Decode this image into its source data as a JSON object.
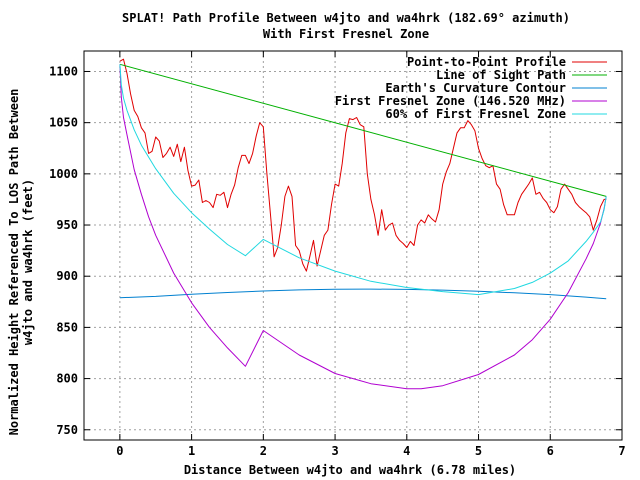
{
  "chart_data": {
    "type": "line",
    "title": "SPLAT! Path Profile Between w4jto and wa4hrk (182.69° azimuth)",
    "subtitle": "With First Fresnel Zone",
    "xlabel": "Distance Between w4jto and wa4hrk (6.78 miles)",
    "ylabel_line1": "Normalized Height Referenced To LOS Path Between",
    "ylabel_line2": "w4jto and wa4hrk (feet)",
    "xlim": [
      -0.5,
      7
    ],
    "ylim": [
      740,
      1120
    ],
    "xticks": [
      0,
      1,
      2,
      3,
      4,
      5,
      6,
      7
    ],
    "yticks": [
      750,
      800,
      850,
      900,
      950,
      1000,
      1050,
      1100
    ],
    "grid": true,
    "legend_position": "top-right",
    "colors": {
      "profile": "#e00000",
      "los": "#00b000",
      "earth": "#0080d0",
      "fresnel": "#b000d0",
      "fresnel60": "#20d8e0",
      "grid": "#a0a0a0"
    },
    "series": [
      {
        "name": "Point-to-Point Profile",
        "key": "profile",
        "x": [
          0,
          0.05,
          0.1,
          0.15,
          0.2,
          0.25,
          0.3,
          0.35,
          0.4,
          0.45,
          0.5,
          0.55,
          0.6,
          0.65,
          0.7,
          0.75,
          0.8,
          0.85,
          0.9,
          0.95,
          1.0,
          1.05,
          1.1,
          1.15,
          1.2,
          1.25,
          1.3,
          1.35,
          1.4,
          1.45,
          1.5,
          1.55,
          1.6,
          1.65,
          1.7,
          1.75,
          1.8,
          1.85,
          1.9,
          1.95,
          2.0,
          2.05,
          2.1,
          2.15,
          2.2,
          2.25,
          2.3,
          2.35,
          2.4,
          2.45,
          2.5,
          2.55,
          2.6,
          2.65,
          2.7,
          2.75,
          2.8,
          2.85,
          2.9,
          2.95,
          3.0,
          3.05,
          3.1,
          3.15,
          3.2,
          3.25,
          3.3,
          3.35,
          3.4,
          3.45,
          3.5,
          3.55,
          3.6,
          3.65,
          3.7,
          3.75,
          3.8,
          3.85,
          3.9,
          3.95,
          4.0,
          4.05,
          4.1,
          4.15,
          4.2,
          4.25,
          4.3,
          4.35,
          4.4,
          4.45,
          4.5,
          4.55,
          4.6,
          4.65,
          4.7,
          4.75,
          4.8,
          4.85,
          4.9,
          4.95,
          5.0,
          5.05,
          5.1,
          5.15,
          5.2,
          5.25,
          5.3,
          5.35,
          5.4,
          5.45,
          5.5,
          5.55,
          5.6,
          5.65,
          5.7,
          5.75,
          5.8,
          5.85,
          5.9,
          5.95,
          6.0,
          6.05,
          6.1,
          6.15,
          6.2,
          6.25,
          6.3,
          6.35,
          6.4,
          6.45,
          6.5,
          6.55,
          6.6,
          6.65,
          6.7,
          6.75,
          6.78
        ],
        "y": [
          1110,
          1112,
          1098,
          1078,
          1062,
          1056,
          1045,
          1040,
          1020,
          1022,
          1036,
          1032,
          1016,
          1020,
          1026,
          1017,
          1029,
          1012,
          1026,
          1003,
          988,
          989,
          994,
          972,
          974,
          972,
          967,
          980,
          979,
          982,
          967,
          980,
          989,
          1006,
          1018,
          1018,
          1010,
          1020,
          1037,
          1050,
          1046,
          1000,
          960,
          919,
          928,
          950,
          978,
          988,
          978,
          930,
          925,
          912,
          905,
          920,
          935,
          910,
          925,
          940,
          945,
          970,
          990,
          988,
          1010,
          1040,
          1054,
          1053,
          1055,
          1048,
          1046,
          1000,
          975,
          960,
          940,
          965,
          945,
          950,
          952,
          940,
          935,
          932,
          928,
          934,
          930,
          950,
          955,
          952,
          960,
          956,
          953,
          965,
          990,
          1002,
          1010,
          1025,
          1040,
          1045,
          1045,
          1052,
          1048,
          1042,
          1025,
          1015,
          1008,
          1006,
          1008,
          990,
          985,
          970,
          960,
          960,
          960,
          972,
          980,
          985,
          990,
          996,
          980,
          982,
          976,
          972,
          965,
          962,
          968,
          985,
          990,
          985,
          980,
          972,
          968,
          965,
          962,
          958,
          945,
          955,
          968,
          975,
          975
        ]
      },
      {
        "name": "Line of Sight Path",
        "key": "los",
        "x": [
          0,
          6.78
        ],
        "y": [
          1107,
          978
        ]
      },
      {
        "name": "Earth's Curvature Contour",
        "key": "earth",
        "x": [
          0,
          0.5,
          1.0,
          1.5,
          2.0,
          2.5,
          3.0,
          3.39,
          3.5,
          4.0,
          4.5,
          5.0,
          5.5,
          6.0,
          6.5,
          6.78
        ],
        "y": [
          879,
          880.3,
          882.4,
          884.1,
          885.6,
          886.6,
          887.2,
          887.4,
          887.4,
          887.1,
          886.4,
          885.3,
          883.8,
          882,
          879.6,
          878
        ]
      },
      {
        "name": "First Fresnel Zone (146.520 MHz)",
        "key": "fresnel",
        "x": [
          0,
          0.02,
          0.05,
          0.1,
          0.2,
          0.3,
          0.4,
          0.5,
          0.75,
          1.0,
          1.25,
          1.5,
          1.75,
          2.0,
          2.5,
          3.0,
          3.5,
          4.0,
          4.2,
          4.5,
          5.0,
          5.5,
          5.75,
          6.0,
          6.25,
          6.5,
          6.6,
          6.7,
          6.75,
          6.78
        ],
        "y": [
          1107,
          1075,
          1055,
          1038,
          1004,
          980,
          958,
          940,
          903,
          874,
          850,
          830,
          812,
          847,
          823,
          805,
          795,
          790,
          790,
          793,
          804,
          823,
          838,
          858,
          884,
          917,
          932,
          952,
          966,
          978
        ]
      },
      {
        "name": "60% of First Fresnel Zone",
        "key": "fresnel60",
        "x": [
          0,
          0.02,
          0.05,
          0.1,
          0.2,
          0.3,
          0.5,
          0.75,
          1.0,
          1.25,
          1.5,
          1.75,
          2.0,
          2.5,
          3.0,
          3.5,
          4.0,
          4.5,
          5.0,
          5.5,
          5.75,
          6.0,
          6.25,
          6.5,
          6.6,
          6.7,
          6.75,
          6.78
        ],
        "y": [
          1107,
          1087,
          1074,
          1062,
          1043,
          1028,
          1005,
          981,
          962,
          946,
          931,
          920,
          936,
          918,
          905,
          895,
          889,
          885,
          882,
          888,
          894,
          903,
          915,
          934,
          943,
          953,
          965,
          978
        ]
      }
    ]
  }
}
